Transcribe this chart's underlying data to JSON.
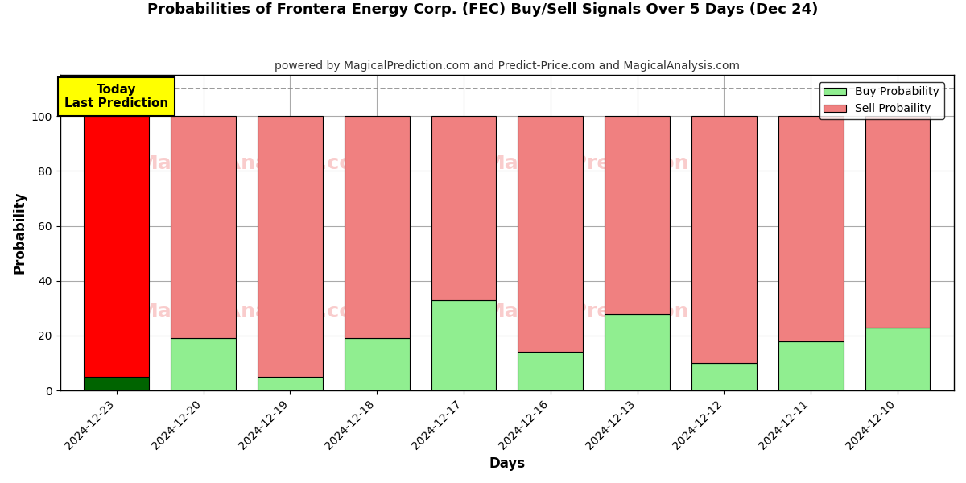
{
  "title": "Probabilities of Frontera Energy Corp. (FEC) Buy/Sell Signals Over 5 Days (Dec 24)",
  "subtitle": "powered by MagicalPrediction.com and Predict-Price.com and MagicalAnalysis.com",
  "xlabel": "Days",
  "ylabel": "Probability",
  "categories": [
    "2024-12-23",
    "2024-12-20",
    "2024-12-19",
    "2024-12-18",
    "2024-12-17",
    "2024-12-16",
    "2024-12-13",
    "2024-12-12",
    "2024-12-11",
    "2024-12-10"
  ],
  "buy_values": [
    5,
    19,
    5,
    19,
    33,
    14,
    28,
    10,
    18,
    23
  ],
  "sell_values": [
    95,
    81,
    95,
    81,
    67,
    86,
    72,
    90,
    82,
    77
  ],
  "today_label": "Today\nLast Prediction",
  "buy_color_today": "#006400",
  "sell_color_today": "#FF0000",
  "buy_color_normal": "#90EE90",
  "sell_color_normal": "#F08080",
  "today_box_color": "#FFFF00",
  "dashed_line_y": 110,
  "ylim": [
    0,
    115
  ],
  "yticks": [
    0,
    20,
    40,
    60,
    80,
    100
  ],
  "watermark_color": "#F08080",
  "watermark_alpha": 0.4,
  "legend_buy_label": "Buy Probability",
  "legend_sell_label": "Sell Probaility",
  "background_color": "#ffffff",
  "grid_color": "#aaaaaa",
  "bar_edge_color": "#000000",
  "bar_width": 0.75
}
